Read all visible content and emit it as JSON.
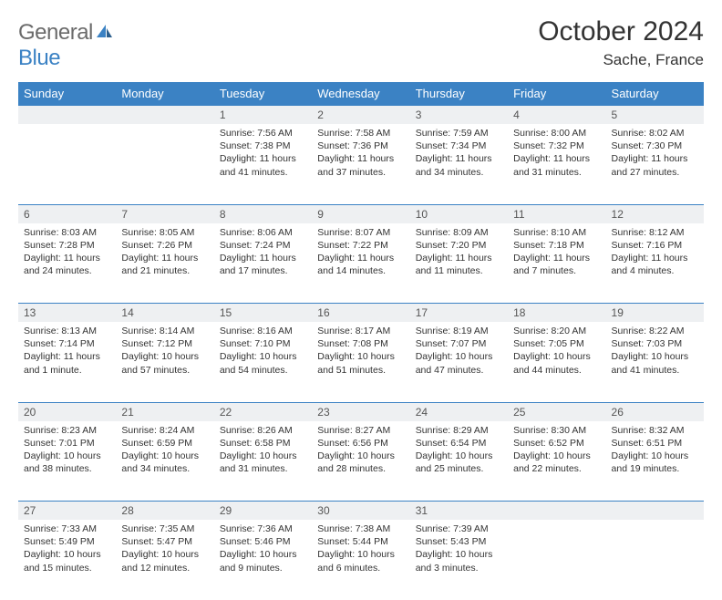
{
  "brand": {
    "general": "General",
    "blue": "Blue"
  },
  "title": "October 2024",
  "location": "Sache, France",
  "accent_color": "#3b82c4",
  "header_bg": "#3b82c4",
  "daynum_bg": "#eef0f2",
  "text_color": "#333333",
  "day_headers": [
    "Sunday",
    "Monday",
    "Tuesday",
    "Wednesday",
    "Thursday",
    "Friday",
    "Saturday"
  ],
  "weeks": [
    [
      null,
      null,
      {
        "n": "1",
        "sr": "Sunrise: 7:56 AM",
        "ss": "Sunset: 7:38 PM",
        "d1": "Daylight: 11 hours",
        "d2": "and 41 minutes."
      },
      {
        "n": "2",
        "sr": "Sunrise: 7:58 AM",
        "ss": "Sunset: 7:36 PM",
        "d1": "Daylight: 11 hours",
        "d2": "and 37 minutes."
      },
      {
        "n": "3",
        "sr": "Sunrise: 7:59 AM",
        "ss": "Sunset: 7:34 PM",
        "d1": "Daylight: 11 hours",
        "d2": "and 34 minutes."
      },
      {
        "n": "4",
        "sr": "Sunrise: 8:00 AM",
        "ss": "Sunset: 7:32 PM",
        "d1": "Daylight: 11 hours",
        "d2": "and 31 minutes."
      },
      {
        "n": "5",
        "sr": "Sunrise: 8:02 AM",
        "ss": "Sunset: 7:30 PM",
        "d1": "Daylight: 11 hours",
        "d2": "and 27 minutes."
      }
    ],
    [
      {
        "n": "6",
        "sr": "Sunrise: 8:03 AM",
        "ss": "Sunset: 7:28 PM",
        "d1": "Daylight: 11 hours",
        "d2": "and 24 minutes."
      },
      {
        "n": "7",
        "sr": "Sunrise: 8:05 AM",
        "ss": "Sunset: 7:26 PM",
        "d1": "Daylight: 11 hours",
        "d2": "and 21 minutes."
      },
      {
        "n": "8",
        "sr": "Sunrise: 8:06 AM",
        "ss": "Sunset: 7:24 PM",
        "d1": "Daylight: 11 hours",
        "d2": "and 17 minutes."
      },
      {
        "n": "9",
        "sr": "Sunrise: 8:07 AM",
        "ss": "Sunset: 7:22 PM",
        "d1": "Daylight: 11 hours",
        "d2": "and 14 minutes."
      },
      {
        "n": "10",
        "sr": "Sunrise: 8:09 AM",
        "ss": "Sunset: 7:20 PM",
        "d1": "Daylight: 11 hours",
        "d2": "and 11 minutes."
      },
      {
        "n": "11",
        "sr": "Sunrise: 8:10 AM",
        "ss": "Sunset: 7:18 PM",
        "d1": "Daylight: 11 hours",
        "d2": "and 7 minutes."
      },
      {
        "n": "12",
        "sr": "Sunrise: 8:12 AM",
        "ss": "Sunset: 7:16 PM",
        "d1": "Daylight: 11 hours",
        "d2": "and 4 minutes."
      }
    ],
    [
      {
        "n": "13",
        "sr": "Sunrise: 8:13 AM",
        "ss": "Sunset: 7:14 PM",
        "d1": "Daylight: 11 hours",
        "d2": "and 1 minute."
      },
      {
        "n": "14",
        "sr": "Sunrise: 8:14 AM",
        "ss": "Sunset: 7:12 PM",
        "d1": "Daylight: 10 hours",
        "d2": "and 57 minutes."
      },
      {
        "n": "15",
        "sr": "Sunrise: 8:16 AM",
        "ss": "Sunset: 7:10 PM",
        "d1": "Daylight: 10 hours",
        "d2": "and 54 minutes."
      },
      {
        "n": "16",
        "sr": "Sunrise: 8:17 AM",
        "ss": "Sunset: 7:08 PM",
        "d1": "Daylight: 10 hours",
        "d2": "and 51 minutes."
      },
      {
        "n": "17",
        "sr": "Sunrise: 8:19 AM",
        "ss": "Sunset: 7:07 PM",
        "d1": "Daylight: 10 hours",
        "d2": "and 47 minutes."
      },
      {
        "n": "18",
        "sr": "Sunrise: 8:20 AM",
        "ss": "Sunset: 7:05 PM",
        "d1": "Daylight: 10 hours",
        "d2": "and 44 minutes."
      },
      {
        "n": "19",
        "sr": "Sunrise: 8:22 AM",
        "ss": "Sunset: 7:03 PM",
        "d1": "Daylight: 10 hours",
        "d2": "and 41 minutes."
      }
    ],
    [
      {
        "n": "20",
        "sr": "Sunrise: 8:23 AM",
        "ss": "Sunset: 7:01 PM",
        "d1": "Daylight: 10 hours",
        "d2": "and 38 minutes."
      },
      {
        "n": "21",
        "sr": "Sunrise: 8:24 AM",
        "ss": "Sunset: 6:59 PM",
        "d1": "Daylight: 10 hours",
        "d2": "and 34 minutes."
      },
      {
        "n": "22",
        "sr": "Sunrise: 8:26 AM",
        "ss": "Sunset: 6:58 PM",
        "d1": "Daylight: 10 hours",
        "d2": "and 31 minutes."
      },
      {
        "n": "23",
        "sr": "Sunrise: 8:27 AM",
        "ss": "Sunset: 6:56 PM",
        "d1": "Daylight: 10 hours",
        "d2": "and 28 minutes."
      },
      {
        "n": "24",
        "sr": "Sunrise: 8:29 AM",
        "ss": "Sunset: 6:54 PM",
        "d1": "Daylight: 10 hours",
        "d2": "and 25 minutes."
      },
      {
        "n": "25",
        "sr": "Sunrise: 8:30 AM",
        "ss": "Sunset: 6:52 PM",
        "d1": "Daylight: 10 hours",
        "d2": "and 22 minutes."
      },
      {
        "n": "26",
        "sr": "Sunrise: 8:32 AM",
        "ss": "Sunset: 6:51 PM",
        "d1": "Daylight: 10 hours",
        "d2": "and 19 minutes."
      }
    ],
    [
      {
        "n": "27",
        "sr": "Sunrise: 7:33 AM",
        "ss": "Sunset: 5:49 PM",
        "d1": "Daylight: 10 hours",
        "d2": "and 15 minutes."
      },
      {
        "n": "28",
        "sr": "Sunrise: 7:35 AM",
        "ss": "Sunset: 5:47 PM",
        "d1": "Daylight: 10 hours",
        "d2": "and 12 minutes."
      },
      {
        "n": "29",
        "sr": "Sunrise: 7:36 AM",
        "ss": "Sunset: 5:46 PM",
        "d1": "Daylight: 10 hours",
        "d2": "and 9 minutes."
      },
      {
        "n": "30",
        "sr": "Sunrise: 7:38 AM",
        "ss": "Sunset: 5:44 PM",
        "d1": "Daylight: 10 hours",
        "d2": "and 6 minutes."
      },
      {
        "n": "31",
        "sr": "Sunrise: 7:39 AM",
        "ss": "Sunset: 5:43 PM",
        "d1": "Daylight: 10 hours",
        "d2": "and 3 minutes."
      },
      null,
      null
    ]
  ]
}
